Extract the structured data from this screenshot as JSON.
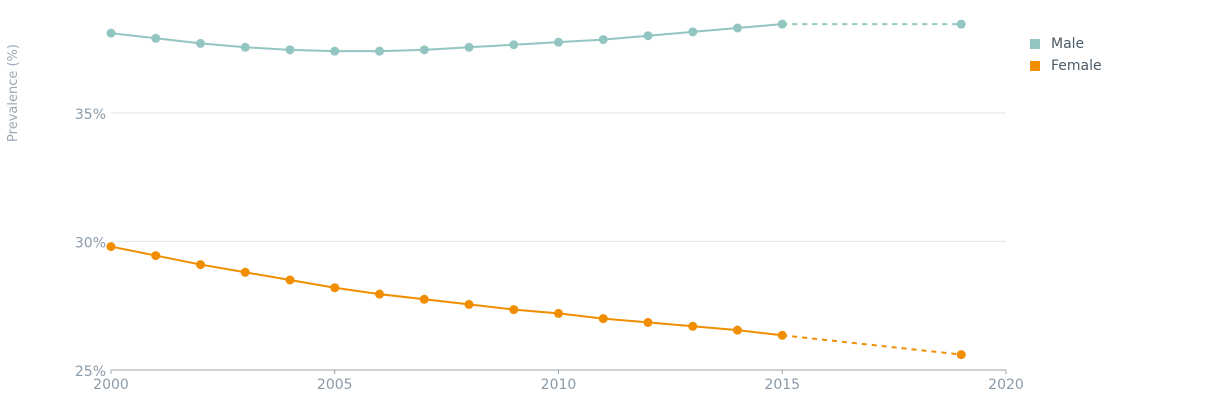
{
  "chart_data": {
    "type": "line",
    "title": "",
    "xlabel": "",
    "ylabel": "Prevalence (%)",
    "x_ticks": [
      "2000",
      "2005",
      "2010",
      "2015",
      "2020"
    ],
    "y_ticks": [
      "25%",
      "30%",
      "35%"
    ],
    "xlim": [
      2000,
      2020
    ],
    "ylim": [
      25,
      39
    ],
    "grid": "horizontal",
    "legend_position": "right",
    "series": [
      {
        "name": "Male",
        "color": "#93c6c2",
        "points": [
          {
            "x": 2000,
            "y": 38.1
          },
          {
            "x": 2001,
            "y": 37.9
          },
          {
            "x": 2002,
            "y": 37.7
          },
          {
            "x": 2003,
            "y": 37.55
          },
          {
            "x": 2004,
            "y": 37.45
          },
          {
            "x": 2005,
            "y": 37.4
          },
          {
            "x": 2006,
            "y": 37.4
          },
          {
            "x": 2007,
            "y": 37.45
          },
          {
            "x": 2008,
            "y": 37.55
          },
          {
            "x": 2009,
            "y": 37.65
          },
          {
            "x": 2010,
            "y": 37.75
          },
          {
            "x": 2011,
            "y": 37.85
          },
          {
            "x": 2012,
            "y": 38.0
          },
          {
            "x": 2013,
            "y": 38.15
          },
          {
            "x": 2014,
            "y": 38.3
          },
          {
            "x": 2015,
            "y": 38.45
          }
        ],
        "projection": [
          {
            "x": 2015,
            "y": 38.45
          },
          {
            "x": 2019,
            "y": 38.45
          }
        ]
      },
      {
        "name": "Female",
        "color": "#f08e00",
        "points": [
          {
            "x": 2000,
            "y": 29.8
          },
          {
            "x": 2001,
            "y": 29.45
          },
          {
            "x": 2002,
            "y": 29.1
          },
          {
            "x": 2003,
            "y": 28.8
          },
          {
            "x": 2004,
            "y": 28.5
          },
          {
            "x": 2005,
            "y": 28.2
          },
          {
            "x": 2006,
            "y": 27.95
          },
          {
            "x": 2007,
            "y": 27.75
          },
          {
            "x": 2008,
            "y": 27.55
          },
          {
            "x": 2009,
            "y": 27.35
          },
          {
            "x": 2010,
            "y": 27.2
          },
          {
            "x": 2011,
            "y": 27.0
          },
          {
            "x": 2012,
            "y": 26.85
          },
          {
            "x": 2013,
            "y": 26.7
          },
          {
            "x": 2014,
            "y": 26.55
          },
          {
            "x": 2015,
            "y": 26.35
          }
        ],
        "projection": [
          {
            "x": 2015,
            "y": 26.35
          },
          {
            "x": 2019,
            "y": 25.6
          }
        ]
      }
    ]
  }
}
